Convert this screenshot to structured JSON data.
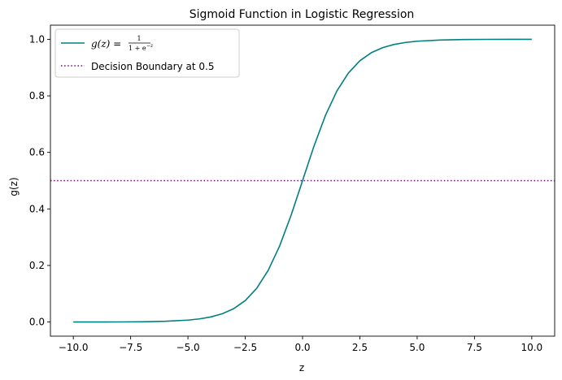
{
  "chart_data": {
    "type": "line",
    "title": "Sigmoid Function in Logistic Regression",
    "xlabel": "z",
    "ylabel": "g(z)",
    "xlim": [
      -11.0,
      11.0
    ],
    "ylim": [
      -0.05,
      1.05
    ],
    "xticks": [
      -10.0,
      -7.5,
      -5.0,
      -2.5,
      0.0,
      2.5,
      5.0,
      7.5,
      10.0
    ],
    "xtick_labels": [
      "−10.0",
      "−7.5",
      "−5.0",
      "−2.5",
      "0.0",
      "2.5",
      "5.0",
      "7.5",
      "10.0"
    ],
    "yticks": [
      0.0,
      0.2,
      0.4,
      0.6,
      0.8,
      1.0
    ],
    "ytick_labels": [
      "0.0",
      "0.2",
      "0.4",
      "0.6",
      "0.8",
      "1.0"
    ],
    "grid": false,
    "legend_position": "upper-left",
    "series": [
      {
        "name": "g(z) = 1 / (1 + e^−z)",
        "style": "solid",
        "color": "#008080",
        "x": [
          -10,
          -9,
          -8,
          -7,
          -6,
          -5,
          -4.5,
          -4,
          -3.5,
          -3,
          -2.5,
          -2,
          -1.5,
          -1,
          -0.5,
          0,
          0.5,
          1,
          1.5,
          2,
          2.5,
          3,
          3.5,
          4,
          4.5,
          5,
          6,
          7,
          8,
          9,
          10
        ],
        "y": [
          0.0,
          0.0001,
          0.0003,
          0.0009,
          0.0025,
          0.0067,
          0.011,
          0.018,
          0.0293,
          0.0474,
          0.0759,
          0.1192,
          0.1824,
          0.2689,
          0.3775,
          0.5,
          0.6225,
          0.7311,
          0.8176,
          0.8808,
          0.9241,
          0.9526,
          0.9707,
          0.982,
          0.989,
          0.9933,
          0.9975,
          0.9991,
          0.9997,
          0.9999,
          1.0
        ]
      },
      {
        "name": "Decision Boundary at 0.5",
        "type": "hline",
        "style": "dotted",
        "color": "#800080",
        "y": 0.5
      }
    ]
  },
  "legend": {
    "sigmoid": {
      "lhs": "g(z) =",
      "numerator": "1",
      "denominator": "1 + e",
      "exponent": "−z"
    },
    "boundary": "Decision Boundary at 0.5"
  }
}
